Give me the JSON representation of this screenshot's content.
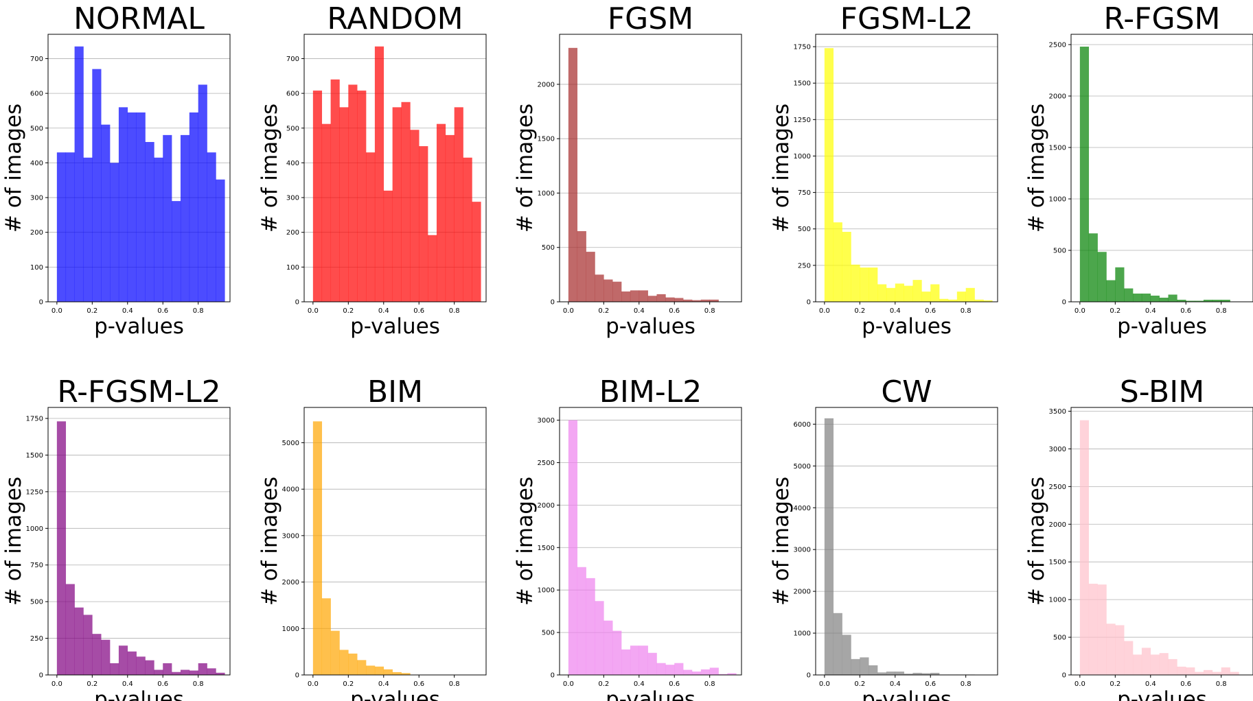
{
  "chart_data": [
    {
      "type": "bar",
      "title": "NORMAL",
      "xlabel": "p-values",
      "ylabel": "# of images",
      "color": "#0000ff",
      "bin_width": 0.05,
      "bin_starts": [
        0.0,
        0.05,
        0.1,
        0.15,
        0.2,
        0.25,
        0.3,
        0.35,
        0.4,
        0.45,
        0.5,
        0.55,
        0.6,
        0.65,
        0.7,
        0.75,
        0.8,
        0.85,
        0.9
      ],
      "values": [
        430,
        430,
        735,
        415,
        670,
        510,
        400,
        560,
        545,
        545,
        460,
        415,
        480,
        290,
        480,
        545,
        625,
        430,
        352
      ],
      "xlim": [
        -0.05,
        0.98
      ],
      "ylim": [
        0,
        770
      ],
      "xticks": [
        0.0,
        0.2,
        0.4,
        0.6,
        0.8
      ],
      "xtick_labels": [
        "0.0",
        "0.2",
        "0.4",
        "0.6",
        "0.8"
      ],
      "yticks": [
        0,
        100,
        200,
        300,
        400,
        500,
        600,
        700
      ],
      "ytick_labels": [
        "0",
        "100",
        "200",
        "300",
        "400",
        "500",
        "600",
        "700"
      ],
      "grid": "y"
    },
    {
      "type": "bar",
      "title": "RANDOM",
      "xlabel": "p-values",
      "ylabel": "# of images",
      "color": "#ff0000",
      "bin_width": 0.05,
      "bin_starts": [
        0.0,
        0.05,
        0.1,
        0.15,
        0.2,
        0.25,
        0.3,
        0.35,
        0.4,
        0.45,
        0.5,
        0.55,
        0.6,
        0.65,
        0.7,
        0.75,
        0.8,
        0.85,
        0.9
      ],
      "values": [
        608,
        512,
        640,
        560,
        625,
        608,
        430,
        735,
        320,
        560,
        575,
        495,
        448,
        192,
        512,
        480,
        560,
        415,
        288
      ],
      "xlim": [
        -0.05,
        0.98
      ],
      "ylim": [
        0,
        770
      ],
      "xticks": [
        0.0,
        0.2,
        0.4,
        0.6,
        0.8
      ],
      "xtick_labels": [
        "0.0",
        "0.2",
        "0.4",
        "0.6",
        "0.8"
      ],
      "yticks": [
        0,
        100,
        200,
        300,
        400,
        500,
        600,
        700
      ],
      "ytick_labels": [
        "0",
        "100",
        "200",
        "300",
        "400",
        "500",
        "600",
        "700"
      ],
      "grid": "y"
    },
    {
      "type": "bar",
      "title": "FGSM",
      "xlabel": "p-values",
      "ylabel": "# of images",
      "color": "#a52a2a",
      "bin_width": 0.05,
      "bin_starts": [
        0.0,
        0.05,
        0.1,
        0.15,
        0.2,
        0.25,
        0.3,
        0.35,
        0.4,
        0.45,
        0.5,
        0.55,
        0.6,
        0.65,
        0.7,
        0.75,
        0.8
      ],
      "values": [
        2335,
        650,
        460,
        250,
        205,
        185,
        95,
        105,
        105,
        55,
        70,
        40,
        35,
        20,
        15,
        20,
        20
      ],
      "xlim": [
        -0.05,
        0.98
      ],
      "ylim": [
        0,
        2460
      ],
      "xticks": [
        0.0,
        0.2,
        0.4,
        0.6,
        0.8
      ],
      "xtick_labels": [
        "0.0",
        "0.2",
        "0.4",
        "0.6",
        "0.8"
      ],
      "yticks": [
        0,
        500,
        1000,
        1500,
        2000
      ],
      "ytick_labels": [
        "0",
        "500",
        "1000",
        "1500",
        "2000"
      ],
      "grid": "y"
    },
    {
      "type": "bar",
      "title": "FGSM-L2",
      "xlabel": "p-values",
      "ylabel": "# of images",
      "color": "#ffff00",
      "bin_width": 0.05,
      "bin_starts": [
        0.0,
        0.05,
        0.1,
        0.15,
        0.2,
        0.25,
        0.3,
        0.35,
        0.4,
        0.45,
        0.5,
        0.55,
        0.6,
        0.65,
        0.7,
        0.75,
        0.8,
        0.85,
        0.9
      ],
      "values": [
        1740,
        545,
        480,
        255,
        235,
        235,
        120,
        95,
        125,
        110,
        150,
        70,
        120,
        20,
        15,
        70,
        95,
        15,
        10
      ],
      "xlim": [
        -0.05,
        0.98
      ],
      "ylim": [
        0,
        1835
      ],
      "xticks": [
        0.0,
        0.2,
        0.4,
        0.6,
        0.8
      ],
      "xtick_labels": [
        "0.0",
        "0.2",
        "0.4",
        "0.6",
        "0.8"
      ],
      "yticks": [
        0,
        250,
        500,
        750,
        1000,
        1250,
        1500,
        1750
      ],
      "ytick_labels": [
        "0",
        "250",
        "500",
        "750",
        "1000",
        "1250",
        "1500",
        "1750"
      ],
      "grid": "y"
    },
    {
      "type": "bar",
      "title": "R-FGSM",
      "xlabel": "p-values",
      "ylabel": "# of images",
      "color": "#008000",
      "bin_width": 0.05,
      "bin_starts": [
        0.0,
        0.05,
        0.1,
        0.15,
        0.2,
        0.25,
        0.3,
        0.35,
        0.4,
        0.45,
        0.5,
        0.55,
        0.6,
        0.65,
        0.7,
        0.75,
        0.8
      ],
      "values": [
        2480,
        665,
        485,
        210,
        335,
        130,
        80,
        80,
        60,
        40,
        70,
        20,
        10,
        10,
        20,
        20,
        20
      ],
      "xlim": [
        -0.05,
        0.98
      ],
      "ylim": [
        0,
        2600
      ],
      "xticks": [
        0.0,
        0.2,
        0.4,
        0.6,
        0.8
      ],
      "xtick_labels": [
        "0.0",
        "0.2",
        "0.4",
        "0.6",
        "0.8"
      ],
      "yticks": [
        0,
        500,
        1000,
        1500,
        2000,
        2500
      ],
      "ytick_labels": [
        "0",
        "500",
        "1000",
        "1500",
        "2000",
        "2500"
      ],
      "grid": "y"
    },
    {
      "type": "bar",
      "title": "R-FGSM-L2",
      "xlabel": "p-values",
      "ylabel": "# of images",
      "color": "#800080",
      "bin_width": 0.05,
      "bin_starts": [
        0.0,
        0.05,
        0.1,
        0.15,
        0.2,
        0.25,
        0.3,
        0.35,
        0.4,
        0.45,
        0.5,
        0.55,
        0.6,
        0.65,
        0.7,
        0.75,
        0.8,
        0.85,
        0.9
      ],
      "values": [
        1730,
        620,
        460,
        410,
        280,
        240,
        80,
        200,
        160,
        125,
        100,
        35,
        80,
        20,
        35,
        30,
        80,
        45,
        15
      ],
      "xlim": [
        -0.05,
        0.98
      ],
      "ylim": [
        0,
        1825
      ],
      "xticks": [
        0.0,
        0.2,
        0.4,
        0.6,
        0.8
      ],
      "xtick_labels": [
        "0.0",
        "0.2",
        "0.4",
        "0.6",
        "0.8"
      ],
      "yticks": [
        0,
        250,
        500,
        750,
        1000,
        1250,
        1500,
        1750
      ],
      "ytick_labels": [
        "0",
        "250",
        "500",
        "750",
        "1000",
        "1250",
        "1500",
        "1750"
      ],
      "grid": "y"
    },
    {
      "type": "bar",
      "title": "BIM",
      "xlabel": "p-values",
      "ylabel": "# of images",
      "color": "#ffa500",
      "bin_width": 0.05,
      "bin_starts": [
        0.0,
        0.05,
        0.1,
        0.15,
        0.2,
        0.25,
        0.3,
        0.35,
        0.4,
        0.45,
        0.5
      ],
      "values": [
        5460,
        1650,
        950,
        540,
        460,
        320,
        200,
        180,
        120,
        60,
        40
      ],
      "xlim": [
        -0.05,
        0.98
      ],
      "ylim": [
        0,
        5760
      ],
      "xticks": [
        0.0,
        0.2,
        0.4,
        0.6,
        0.8
      ],
      "xtick_labels": [
        "0.0",
        "0.2",
        "0.4",
        "0.6",
        "0.8"
      ],
      "yticks": [
        0,
        1000,
        2000,
        3000,
        4000,
        5000
      ],
      "ytick_labels": [
        "0",
        "1000",
        "2000",
        "3000",
        "4000",
        "5000"
      ],
      "grid": "y"
    },
    {
      "type": "bar",
      "title": "BIM-L2",
      "xlabel": "p-values",
      "ylabel": "# of images",
      "color": "#ee82ee",
      "bin_width": 0.05,
      "bin_starts": [
        0.0,
        0.05,
        0.1,
        0.15,
        0.2,
        0.25,
        0.3,
        0.35,
        0.4,
        0.45,
        0.5,
        0.55,
        0.6,
        0.65,
        0.7,
        0.75,
        0.8,
        0.85,
        0.9
      ],
      "values": [
        3000,
        1270,
        1140,
        870,
        640,
        520,
        300,
        345,
        345,
        260,
        140,
        120,
        140,
        60,
        40,
        65,
        85,
        10,
        20
      ],
      "xlim": [
        -0.05,
        0.98
      ],
      "ylim": [
        0,
        3150
      ],
      "xticks": [
        0.0,
        0.2,
        0.4,
        0.6,
        0.8
      ],
      "xtick_labels": [
        "0.0",
        "0.2",
        "0.4",
        "0.6",
        "0.8"
      ],
      "yticks": [
        0,
        500,
        1000,
        1500,
        2000,
        2500,
        3000
      ],
      "ytick_labels": [
        "0",
        "500",
        "1000",
        "1500",
        "2000",
        "2500",
        "3000"
      ],
      "grid": "y"
    },
    {
      "type": "bar",
      "title": "CW",
      "xlabel": "p-values",
      "ylabel": "# of images",
      "color": "#808080",
      "bin_width": 0.05,
      "bin_starts": [
        0.0,
        0.05,
        0.1,
        0.15,
        0.2,
        0.25,
        0.3,
        0.35,
        0.4,
        0.45,
        0.5,
        0.55,
        0.6,
        0.65,
        0.7,
        0.75,
        0.8
      ],
      "values": [
        6140,
        1480,
        960,
        380,
        420,
        230,
        60,
        80,
        80,
        30,
        50,
        40,
        50,
        10,
        10,
        10,
        10
      ],
      "xlim": [
        -0.05,
        0.98
      ],
      "ylim": [
        0,
        6400
      ],
      "xticks": [
        0.0,
        0.2,
        0.4,
        0.6,
        0.8
      ],
      "xtick_labels": [
        "0.0",
        "0.2",
        "0.4",
        "0.6",
        "0.8"
      ],
      "yticks": [
        0,
        1000,
        2000,
        3000,
        4000,
        5000,
        6000
      ],
      "ytick_labels": [
        "0",
        "1000",
        "2000",
        "3000",
        "4000",
        "5000",
        "6000"
      ],
      "grid": "y"
    },
    {
      "type": "bar",
      "title": "S-BIM",
      "xlabel": "p-values",
      "ylabel": "# of images",
      "color": "#ffc0cb",
      "bin_width": 0.05,
      "bin_starts": [
        0.0,
        0.05,
        0.1,
        0.15,
        0.2,
        0.25,
        0.3,
        0.35,
        0.4,
        0.45,
        0.5,
        0.55,
        0.6,
        0.65,
        0.7,
        0.75,
        0.8,
        0.85
      ],
      "values": [
        3380,
        1210,
        1200,
        680,
        660,
        450,
        270,
        360,
        270,
        290,
        210,
        110,
        100,
        40,
        65,
        40,
        100,
        40
      ],
      "xlim": [
        -0.05,
        0.98
      ],
      "ylim": [
        0,
        3550
      ],
      "xticks": [
        0.0,
        0.2,
        0.4,
        0.6,
        0.8
      ],
      "xtick_labels": [
        "0.0",
        "0.2",
        "0.4",
        "0.6",
        "0.8"
      ],
      "yticks": [
        0,
        500,
        1000,
        1500,
        2000,
        2500,
        3000,
        3500
      ],
      "ytick_labels": [
        "0",
        "500",
        "1000",
        "1500",
        "2000",
        "2500",
        "3000",
        "3500"
      ],
      "grid": "y"
    }
  ]
}
